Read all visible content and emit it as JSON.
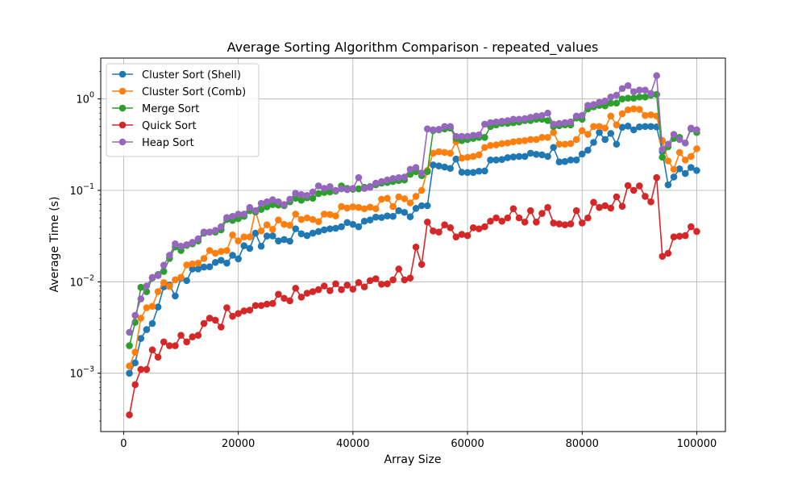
{
  "chart_data": {
    "type": "line",
    "title": "Average Sorting Algorithm Comparison - repeated_values",
    "xlabel": "Array Size",
    "ylabel": "Average Time (s)",
    "yscale": "log",
    "xlim": [
      -4000,
      105000
    ],
    "ylim": [
      0.00023,
      2.8
    ],
    "grid": true,
    "legend_position": "top-left",
    "xticks": [
      0,
      20000,
      40000,
      60000,
      80000,
      100000
    ],
    "xtick_labels": [
      "0",
      "20000",
      "40000",
      "60000",
      "80000",
      "100000"
    ],
    "yticks": [
      0.001,
      0.01,
      0.1,
      1
    ],
    "ytick_labels": [
      "10",
      "10",
      "10",
      "10"
    ],
    "ytick_exponents": [
      "−3",
      "−2",
      "−1",
      "0"
    ],
    "x": [
      1000,
      2000,
      3000,
      4000,
      5000,
      6000,
      7000,
      8000,
      9000,
      10000,
      11000,
      12000,
      13000,
      14000,
      15000,
      16000,
      17000,
      18000,
      19000,
      20000,
      21000,
      22000,
      23000,
      24000,
      25000,
      26000,
      27000,
      28000,
      29000,
      30000,
      31000,
      32000,
      33000,
      34000,
      35000,
      36000,
      37000,
      38000,
      39000,
      40000,
      41000,
      42000,
      43000,
      44000,
      45000,
      46000,
      47000,
      48000,
      49000,
      50000,
      51000,
      52000,
      53000,
      54000,
      55000,
      56000,
      57000,
      58000,
      59000,
      60000,
      61000,
      62000,
      63000,
      64000,
      65000,
      66000,
      67000,
      68000,
      69000,
      70000,
      71000,
      72000,
      73000,
      74000,
      75000,
      76000,
      77000,
      78000,
      79000,
      80000,
      81000,
      82000,
      83000,
      84000,
      85000,
      86000,
      87000,
      88000,
      89000,
      90000,
      91000,
      92000,
      93000,
      94000,
      95000,
      96000,
      97000,
      98000,
      99000,
      100000
    ],
    "series": [
      {
        "name": "Cluster Sort (Shell)",
        "color": "#1f77b4",
        "values": [
          0.001,
          0.0013,
          0.0024,
          0.003,
          0.0035,
          0.0053,
          0.0088,
          0.0092,
          0.007,
          0.011,
          0.0103,
          0.0138,
          0.0138,
          0.0145,
          0.0146,
          0.0163,
          0.0172,
          0.016,
          0.0195,
          0.0178,
          0.0248,
          0.0232,
          0.034,
          0.0245,
          0.0317,
          0.0318,
          0.028,
          0.029,
          0.0278,
          0.038,
          0.0335,
          0.032,
          0.034,
          0.0355,
          0.037,
          0.038,
          0.0385,
          0.04,
          0.0445,
          0.0425,
          0.04,
          0.046,
          0.0475,
          0.051,
          0.0505,
          0.0525,
          0.052,
          0.06,
          0.0575,
          0.0515,
          0.0635,
          0.068,
          0.068,
          0.19,
          0.185,
          0.18,
          0.174,
          0.22,
          0.158,
          0.157,
          0.157,
          0.162,
          0.163,
          0.215,
          0.215,
          0.218,
          0.228,
          0.232,
          0.235,
          0.235,
          0.255,
          0.248,
          0.245,
          0.235,
          0.295,
          0.205,
          0.207,
          0.215,
          0.215,
          0.25,
          0.275,
          0.335,
          0.43,
          0.36,
          0.42,
          0.32,
          0.49,
          0.505,
          0.46,
          0.495,
          0.5,
          0.5,
          0.495,
          0.265,
          0.115,
          0.14,
          0.172,
          0.153,
          0.178,
          0.165
        ]
      },
      {
        "name": "Cluster Sort (Comb)",
        "color": "#ff7f0e",
        "values": [
          0.0012,
          0.0017,
          0.004,
          0.0052,
          0.0054,
          0.0078,
          0.0098,
          0.0089,
          0.0105,
          0.0112,
          0.0153,
          0.0157,
          0.016,
          0.018,
          0.022,
          0.0205,
          0.0215,
          0.022,
          0.0325,
          0.028,
          0.031,
          0.031,
          0.06,
          0.036,
          0.042,
          0.0375,
          0.0475,
          0.0425,
          0.0415,
          0.055,
          0.048,
          0.05,
          0.048,
          0.0455,
          0.055,
          0.0545,
          0.0525,
          0.0665,
          0.064,
          0.066,
          0.065,
          0.063,
          0.0655,
          0.063,
          0.08,
          0.082,
          0.0665,
          0.085,
          0.081,
          0.073,
          0.086,
          0.1,
          0.165,
          0.255,
          0.265,
          0.26,
          0.255,
          0.34,
          0.225,
          0.23,
          0.235,
          0.245,
          0.295,
          0.31,
          0.315,
          0.325,
          0.33,
          0.34,
          0.345,
          0.35,
          0.36,
          0.36,
          0.38,
          0.38,
          0.43,
          0.32,
          0.32,
          0.325,
          0.36,
          0.45,
          0.41,
          0.5,
          0.5,
          0.48,
          0.65,
          0.52,
          0.69,
          0.76,
          0.78,
          0.77,
          0.66,
          0.67,
          0.65,
          0.35,
          0.21,
          0.17,
          0.26,
          0.215,
          0.235,
          0.285
        ]
      },
      {
        "name": "Merge Sort",
        "color": "#2ca02c",
        "values": [
          0.002,
          0.0036,
          0.0087,
          0.0078,
          0.011,
          0.012,
          0.013,
          0.018,
          0.024,
          0.022,
          0.025,
          0.026,
          0.028,
          0.034,
          0.035,
          0.035,
          0.037,
          0.048,
          0.047,
          0.049,
          0.052,
          0.06,
          0.058,
          0.062,
          0.066,
          0.07,
          0.069,
          0.068,
          0.075,
          0.082,
          0.078,
          0.083,
          0.082,
          0.092,
          0.095,
          0.096,
          0.098,
          0.112,
          0.105,
          0.103,
          0.104,
          0.108,
          0.11,
          0.115,
          0.12,
          0.122,
          0.125,
          0.128,
          0.13,
          0.15,
          0.16,
          0.145,
          0.16,
          0.45,
          0.46,
          0.47,
          0.48,
          0.37,
          0.35,
          0.36,
          0.37,
          0.38,
          0.38,
          0.5,
          0.52,
          0.54,
          0.54,
          0.55,
          0.56,
          0.58,
          0.58,
          0.6,
          0.6,
          0.58,
          0.5,
          0.51,
          0.52,
          0.52,
          0.62,
          0.6,
          0.78,
          0.82,
          0.85,
          0.84,
          0.9,
          0.9,
          1.0,
          1.02,
          1.02,
          1.05,
          1.05,
          1.1,
          1.12,
          0.23,
          0.3,
          0.37,
          0.38,
          0.33,
          0.47,
          0.43
        ]
      },
      {
        "name": "Quick Sort",
        "color": "#d62728",
        "values": [
          0.00035,
          0.00075,
          0.0011,
          0.0011,
          0.0018,
          0.0015,
          0.0022,
          0.002,
          0.002,
          0.0026,
          0.0022,
          0.0025,
          0.0026,
          0.0035,
          0.004,
          0.0038,
          0.0032,
          0.0052,
          0.0042,
          0.0045,
          0.0048,
          0.0049,
          0.0055,
          0.0055,
          0.0057,
          0.0058,
          0.0073,
          0.0066,
          0.0062,
          0.0085,
          0.0068,
          0.0075,
          0.0078,
          0.0082,
          0.009,
          0.008,
          0.0095,
          0.0082,
          0.0092,
          0.0083,
          0.0098,
          0.0088,
          0.0103,
          0.0108,
          0.0094,
          0.0095,
          0.0105,
          0.0138,
          0.0105,
          0.011,
          0.024,
          0.0155,
          0.045,
          0.036,
          0.035,
          0.042,
          0.039,
          0.031,
          0.033,
          0.032,
          0.039,
          0.038,
          0.04,
          0.046,
          0.05,
          0.046,
          0.05,
          0.063,
          0.05,
          0.045,
          0.06,
          0.045,
          0.056,
          0.065,
          0.044,
          0.043,
          0.042,
          0.043,
          0.06,
          0.044,
          0.05,
          0.074,
          0.065,
          0.068,
          0.064,
          0.085,
          0.067,
          0.113,
          0.1,
          0.112,
          0.086,
          0.075,
          0.138,
          0.019,
          0.0205,
          0.031,
          0.0315,
          0.032,
          0.04,
          0.0355
        ]
      },
      {
        "name": "Heap Sort",
        "color": "#9467bd",
        "values": [
          0.0028,
          0.0043,
          0.0065,
          0.009,
          0.0112,
          0.0117,
          0.0152,
          0.0195,
          0.026,
          0.0245,
          0.0255,
          0.027,
          0.0295,
          0.035,
          0.035,
          0.0365,
          0.04,
          0.0505,
          0.052,
          0.055,
          0.055,
          0.065,
          0.06,
          0.072,
          0.075,
          0.079,
          0.075,
          0.07,
          0.08,
          0.093,
          0.09,
          0.088,
          0.096,
          0.112,
          0.105,
          0.11,
          0.1,
          0.104,
          0.102,
          0.105,
          0.138,
          0.105,
          0.108,
          0.12,
          0.125,
          0.13,
          0.135,
          0.138,
          0.14,
          0.17,
          0.178,
          0.155,
          0.47,
          0.46,
          0.465,
          0.5,
          0.5,
          0.39,
          0.39,
          0.39,
          0.4,
          0.405,
          0.53,
          0.55,
          0.56,
          0.57,
          0.58,
          0.6,
          0.6,
          0.61,
          0.63,
          0.65,
          0.66,
          0.7,
          0.53,
          0.54,
          0.55,
          0.56,
          0.65,
          0.66,
          0.85,
          0.87,
          0.92,
          0.95,
          1.05,
          1.1,
          1.3,
          1.4,
          1.2,
          1.25,
          1.25,
          1.15,
          1.8,
          0.28,
          0.32,
          0.41,
          0.36,
          0.33,
          0.48,
          0.46
        ]
      }
    ]
  }
}
